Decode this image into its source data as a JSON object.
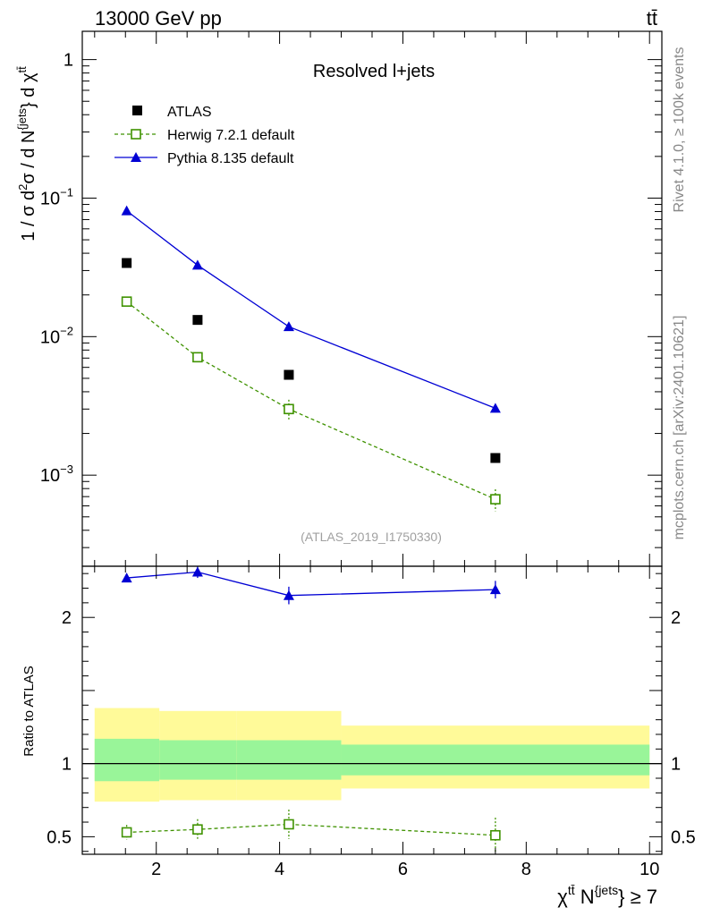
{
  "header": {
    "energy_label": "13000 GeV pp",
    "process_label": "tt̄"
  },
  "side_labels": {
    "rivet": "Rivet 4.1.0, ≥ 100k events",
    "mcplots": "mcplots.cern.ch [arXiv:2401.10621]"
  },
  "chart_data": {
    "type": "scatter",
    "title": "Resolved l+jets",
    "analysis_id": "(ATLAS_2019_I1750330)",
    "xlabel_main": "χ",
    "xlabel_sup1": "tt̄",
    "xlabel_mid": " N",
    "xlabel_sup2": "{jets",
    "xlabel_tail": "} ≥ 7",
    "ylabel_main": "1 / σ d²σ / d N^{jets} d χ^{tt̄}",
    "ylabel_ratio": "Ratio to ATLAS",
    "xlim": [
      0.8,
      10.2
    ],
    "ylim_main": [
      0.00022,
      1.6
    ],
    "ylim_ratio": [
      0.38,
      2.35
    ],
    "yscale_main": "log",
    "x_ticks": [
      "2",
      "4",
      "6",
      "8",
      "10"
    ],
    "y_ticks_main": [
      {
        "base": "1",
        "exp": ""
      },
      {
        "base": "10",
        "exp": "−1"
      },
      {
        "base": "10",
        "exp": "−2"
      },
      {
        "base": "10",
        "exp": "−3"
      }
    ],
    "y_ticks_ratio": [
      "0.5",
      "1",
      "2"
    ],
    "legend_position": "top-left",
    "legend": [
      "ATLAS",
      "Herwig 7.2.1 default",
      "Pythia 8.135 default"
    ],
    "bins": [
      {
        "lo": 1.0,
        "hi": 2.05
      },
      {
        "lo": 2.05,
        "hi": 3.3
      },
      {
        "lo": 3.3,
        "hi": 5.0
      },
      {
        "lo": 5.0,
        "hi": 10.0
      }
    ],
    "x": [
      1.52,
      2.67,
      4.15,
      7.5
    ],
    "atlas": [
      0.034,
      0.0132,
      0.0053,
      0.00133
    ],
    "band_inner": [
      [
        0.88,
        1.17
      ],
      [
        0.89,
        1.16
      ],
      [
        0.89,
        1.16
      ],
      [
        0.92,
        1.13
      ]
    ],
    "band_outer": [
      [
        0.74,
        1.38
      ],
      [
        0.75,
        1.36
      ],
      [
        0.75,
        1.36
      ],
      [
        0.83,
        1.26
      ]
    ],
    "series": [
      {
        "name": "Herwig 7.2.1 default",
        "color": "#3f9200",
        "marker": "open-square",
        "line": "dashed",
        "values": [
          0.0179,
          0.0071,
          0.003,
          0.00067
        ],
        "err": [
          0.0006,
          0.0006,
          0.0005,
          0.00012
        ],
        "ratio": [
          0.53,
          0.55,
          0.585,
          0.51
        ],
        "ratio_err": [
          0.05,
          0.07,
          0.1,
          0.12
        ]
      },
      {
        "name": "Pythia 8.135 default",
        "color": "#0000d4",
        "marker": "filled-triangle",
        "line": "solid",
        "values": [
          0.081,
          0.0328,
          0.0118,
          0.00304
        ],
        "err": [
          0.001,
          0.0006,
          0.0003,
          0.0002
        ],
        "ratio": [
          2.27,
          2.31,
          2.15,
          2.19
        ],
        "ratio_err": [
          0.02,
          0.04,
          0.06,
          0.06
        ]
      }
    ],
    "colors": {
      "atlas": "#000000",
      "band_inner": "#99f599",
      "band_outer": "#fffa99",
      "frame": "#000000"
    }
  }
}
